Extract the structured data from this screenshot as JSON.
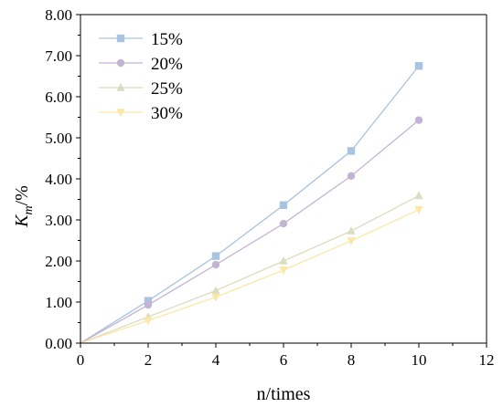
{
  "chart_data": {
    "type": "line",
    "title": "",
    "xlabel": "n/times",
    "ylabel": "K_m/%",
    "ylabel_parts": {
      "main": "K",
      "sub": "m",
      "rest": "/%"
    },
    "xlim": [
      0,
      12
    ],
    "ylim": [
      0,
      8
    ],
    "x_ticks": [
      "0",
      "2",
      "4",
      "6",
      "8",
      "10",
      "12"
    ],
    "y_ticks": [
      "0.00",
      "1.00",
      "2.00",
      "3.00",
      "4.00",
      "5.00",
      "6.00",
      "7.00",
      "8.00"
    ],
    "grid": false,
    "legend_position": "top-left",
    "x": [
      0,
      2,
      4,
      6,
      8,
      10
    ],
    "series": [
      {
        "name": "15%",
        "values": [
          0,
          1.03,
          2.12,
          3.36,
          4.68,
          6.75
        ],
        "color": "#a9c4e0",
        "marker": "square"
      },
      {
        "name": "20%",
        "values": [
          0,
          0.93,
          1.91,
          2.91,
          4.07,
          5.43
        ],
        "color": "#c4b4d4",
        "marker": "circle"
      },
      {
        "name": "25%",
        "values": [
          0,
          0.64,
          1.28,
          2.0,
          2.73,
          3.59
        ],
        "color": "#dcdcc0",
        "marker": "triangle-up"
      },
      {
        "name": "30%",
        "values": [
          0,
          0.55,
          1.12,
          1.78,
          2.49,
          3.25
        ],
        "color": "#fbe8a6",
        "marker": "triangle-down"
      }
    ]
  }
}
